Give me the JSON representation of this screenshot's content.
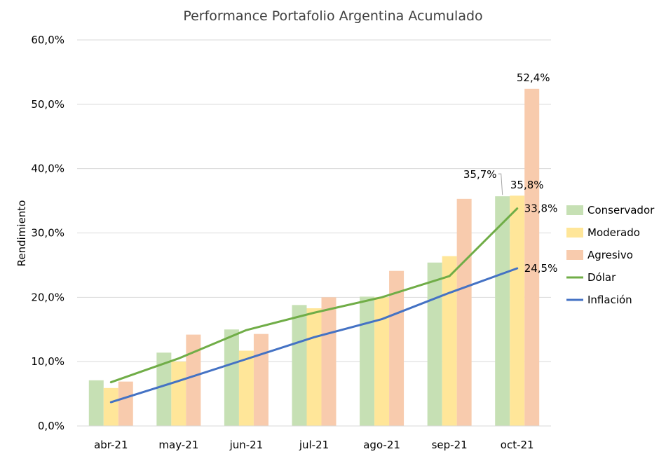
{
  "chart_data": {
    "type": "bar",
    "title": "Performance Portafolio Argentina Acumulado",
    "xlabel": "",
    "ylabel": "Rendimiento",
    "ylim": [
      0,
      60
    ],
    "yticks": [
      "0,0%",
      "10,0%",
      "20,0%",
      "30,0%",
      "40,0%",
      "50,0%",
      "60,0%"
    ],
    "grid": true,
    "legend_position": "right",
    "categories": [
      "abr-21",
      "may-21",
      "jun-21",
      "jul-21",
      "ago-21",
      "sep-21",
      "oct-21"
    ],
    "bar_series": [
      {
        "name": "Conservador",
        "color": "#c6e0b4",
        "values": [
          7.1,
          11.4,
          15.0,
          18.8,
          20.1,
          25.4,
          35.7
        ]
      },
      {
        "name": "Moderado",
        "color": "#ffe699",
        "values": [
          5.9,
          10.0,
          11.7,
          18.3,
          20.0,
          26.4,
          35.8
        ]
      },
      {
        "name": "Agresivo",
        "color": "#f8cbad",
        "values": [
          6.9,
          14.2,
          14.3,
          20.0,
          24.1,
          35.3,
          52.4
        ]
      }
    ],
    "line_series": [
      {
        "name": "Dólar",
        "color": "#70ad47",
        "values": [
          6.8,
          10.5,
          14.9,
          17.6,
          20.0,
          23.3,
          33.8
        ]
      },
      {
        "name": "Inflación",
        "color": "#4472c4",
        "values": [
          3.7,
          7.0,
          10.4,
          13.8,
          16.6,
          20.7,
          24.5
        ]
      }
    ],
    "data_labels": [
      {
        "series": "Conservador",
        "category": "oct-21",
        "text": "35,7%"
      },
      {
        "series": "Moderado",
        "category": "oct-21",
        "text": "35,8%"
      },
      {
        "series": "Agresivo",
        "category": "oct-21",
        "text": "52,4%"
      },
      {
        "series": "Dólar",
        "category": "oct-21",
        "text": "33,8%"
      },
      {
        "series": "Inflación",
        "category": "oct-21",
        "text": "24,5%"
      }
    ]
  }
}
